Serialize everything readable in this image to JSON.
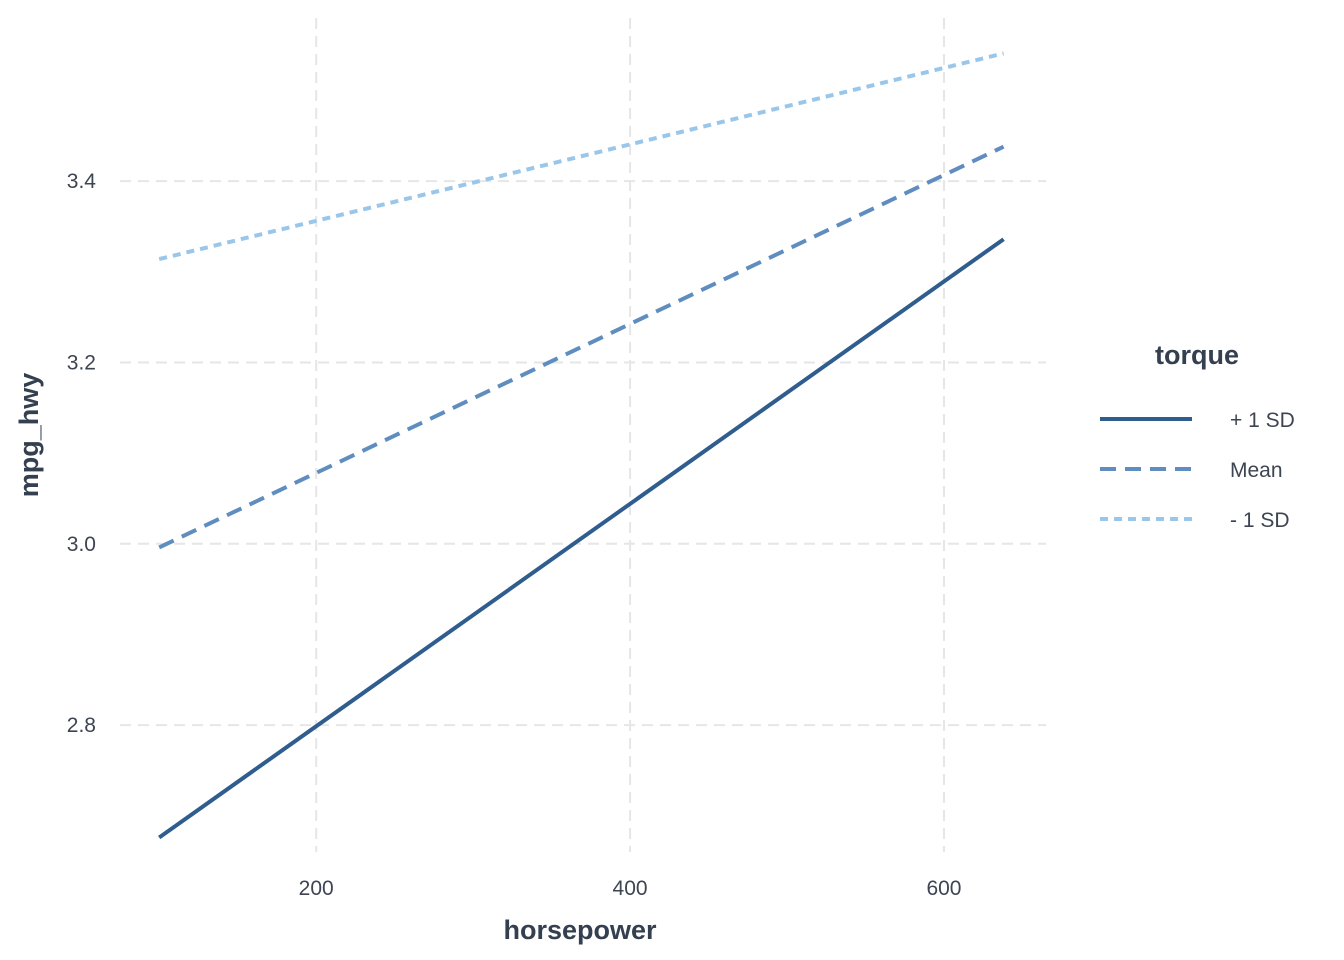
{
  "chart_data": {
    "type": "line",
    "xlabel": "horsepower",
    "ylabel": "mpg_hwy",
    "xlim": [
      75,
      665
    ],
    "ylim": [
      2.66,
      3.58
    ],
    "xticks": [
      200,
      400,
      600
    ],
    "xtick_labels": [
      "200",
      "400",
      "600"
    ],
    "yticks": [
      2.8,
      3.0,
      3.2,
      3.4
    ],
    "ytick_labels": [
      "2.8",
      "3.0",
      "3.2",
      "3.4"
    ],
    "grid": true,
    "legend": {
      "title": "torque",
      "placement": "right"
    },
    "series": [
      {
        "name": "+ 1 SD",
        "color": "#2f5d8e",
        "dash": "solid",
        "x": [
          100,
          638
        ],
        "y": [
          2.676,
          3.336
        ]
      },
      {
        "name": "Mean",
        "color": "#5f8dc0",
        "dash": "dashed",
        "x": [
          100,
          638
        ],
        "y": [
          2.996,
          3.438
        ]
      },
      {
        "name": "- 1 SD",
        "color": "#9ac6ea",
        "dash": "dotted",
        "x": [
          100,
          638
        ],
        "y": [
          3.314,
          3.541
        ]
      }
    ]
  }
}
